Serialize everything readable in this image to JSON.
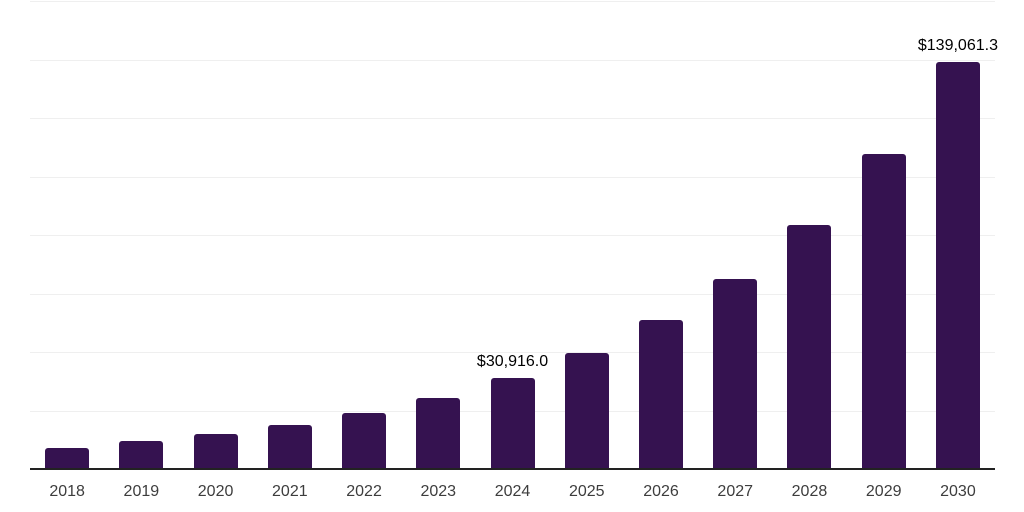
{
  "chart_data": {
    "type": "bar",
    "title": "",
    "xlabel": "",
    "ylabel": "",
    "categories": [
      "2018",
      "2019",
      "2020",
      "2021",
      "2022",
      "2023",
      "2024",
      "2025",
      "2026",
      "2027",
      "2028",
      "2029",
      "2030"
    ],
    "values": [
      6800,
      9100,
      11800,
      14900,
      18700,
      24100,
      30916.0,
      39500,
      50600,
      64800,
      83400,
      107500,
      139061.3
    ],
    "data_labels": [
      "",
      "",
      "",
      "",
      "",
      "",
      "$30,916.0",
      "",
      "",
      "",
      "",
      "",
      "$139,061.3"
    ],
    "ylim": [
      0,
      160000
    ],
    "grid_interval": 20000,
    "grid": "horizontal-only",
    "y_axis_tick_labels": "none",
    "legend": "none",
    "colors": {
      "bar": "#351250",
      "gridline": "#efefef",
      "axis_line": "#222222",
      "tick_label": "#3d3d3d",
      "data_label": "#000000",
      "background": "#ffffff"
    }
  }
}
